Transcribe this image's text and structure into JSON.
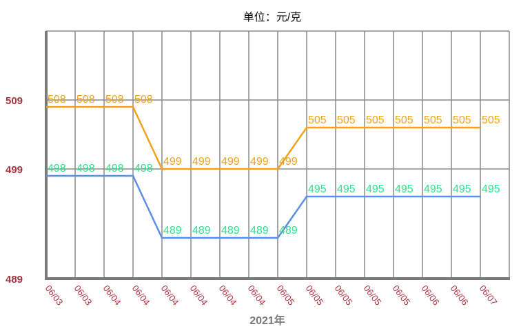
{
  "chart_data": {
    "type": "line",
    "title": "",
    "unit_label": "单位：元/克",
    "xlabel": "2021年",
    "ylabel": "",
    "categories": [
      "06/03",
      "06/03",
      "06/04",
      "06/04",
      "06/04",
      "06/04",
      "06/04",
      "06/04",
      "06/05",
      "06/05",
      "06/05",
      "06/05",
      "06/05",
      "06/06",
      "06/06",
      "06/07"
    ],
    "y_ticks": [
      489,
      499,
      509
    ],
    "grid": true,
    "series": [
      {
        "color": "#f2a31b",
        "label_color": "#f2a31b",
        "values": [
          508,
          508,
          508,
          508,
          499,
          499,
          499,
          499,
          499,
          505,
          505,
          505,
          505,
          505,
          505,
          505
        ]
      },
      {
        "color": "#5b8ee6",
        "label_color": "#2ee48a",
        "values": [
          498,
          498,
          498,
          498,
          489,
          489,
          489,
          489,
          489,
          495,
          495,
          495,
          495,
          495,
          495,
          495
        ]
      }
    ]
  }
}
